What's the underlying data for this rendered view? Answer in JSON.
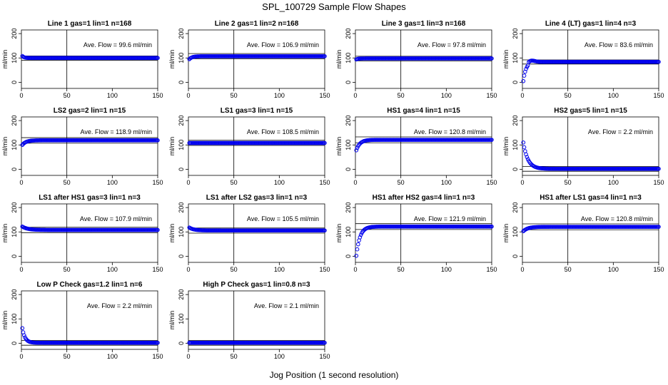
{
  "title": "SPL_100729  Sample Flow Shapes",
  "xlabel": "Jog Position (1 second resolution)",
  "chart_data": [
    {
      "type": "scatter",
      "title": "Line 1 gas=1 lin=1 n=168",
      "ylabel": "ml/min",
      "annotation": "Ave. Flow =  99.6  ml/min",
      "xlim": [
        0,
        150
      ],
      "ylim": [
        -25,
        215
      ],
      "yticks": [
        0,
        100,
        200
      ],
      "xticks": [
        0,
        50,
        100,
        150
      ],
      "vline": 50,
      "hlines": [
        90,
        108
      ],
      "shape": {
        "start": 108,
        "final": 100,
        "tau": 2
      }
    },
    {
      "type": "scatter",
      "title": "Line 2 gas=1 lin=2 n=168",
      "ylabel": "ml/min",
      "annotation": "Ave. Flow =  106.9  ml/min",
      "xlim": [
        0,
        150
      ],
      "ylim": [
        -25,
        215
      ],
      "yticks": [
        0,
        100,
        200
      ],
      "xticks": [
        0,
        50,
        100,
        150
      ],
      "vline": 50,
      "hlines": [
        97,
        118
      ],
      "shape": {
        "start": 95,
        "final": 107,
        "tau": 3
      }
    },
    {
      "type": "scatter",
      "title": "Line 3 gas=1 lin=3 n=168",
      "ylabel": "ml/min",
      "annotation": "Ave. Flow =  97.8  ml/min",
      "xlim": [
        0,
        150
      ],
      "ylim": [
        -25,
        215
      ],
      "yticks": [
        0,
        100,
        200
      ],
      "xticks": [
        0,
        50,
        100,
        150
      ],
      "vline": 50,
      "hlines": [
        88,
        107
      ],
      "shape": {
        "start": 94,
        "final": 98,
        "tau": 2
      }
    },
    {
      "type": "scatter",
      "title": "Line 4 (LT) gas=1 lin=4 n=3",
      "ylabel": "ml/min",
      "annotation": "Ave. Flow =  83.6  ml/min",
      "xlim": [
        0,
        150
      ],
      "ylim": [
        -25,
        215
      ],
      "yticks": [
        0,
        100,
        200
      ],
      "xticks": [
        0,
        50,
        100,
        150
      ],
      "vline": 50,
      "hlines": [
        75,
        92
      ],
      "shape": {
        "start": 5,
        "final": 84,
        "tau": 3,
        "overshoot": true
      }
    },
    {
      "type": "scatter",
      "title": "LS2 gas=2 lin=1 n=15",
      "ylabel": "ml/min",
      "annotation": "Ave. Flow =  118.9  ml/min",
      "xlim": [
        0,
        150
      ],
      "ylim": [
        -25,
        215
      ],
      "yticks": [
        0,
        100,
        200
      ],
      "xticks": [
        0,
        50,
        100,
        150
      ],
      "vline": 50,
      "hlines": [
        107,
        130
      ],
      "shape": {
        "start": 100,
        "final": 119,
        "tau": 4
      }
    },
    {
      "type": "scatter",
      "title": "LS1 gas=3 lin=1 n=15",
      "ylabel": "ml/min",
      "annotation": "Ave. Flow =  108.5  ml/min",
      "xlim": [
        0,
        150
      ],
      "ylim": [
        -25,
        215
      ],
      "yticks": [
        0,
        100,
        200
      ],
      "xticks": [
        0,
        50,
        100,
        150
      ],
      "vline": 50,
      "hlines": [
        98,
        119
      ],
      "shape": {
        "start": 108,
        "final": 108,
        "tau": 2
      }
    },
    {
      "type": "scatter",
      "title": "HS1 gas=4 lin=1 n=15",
      "ylabel": "ml/min",
      "annotation": "Ave. Flow =  120.8  ml/min",
      "xlim": [
        0,
        150
      ],
      "ylim": [
        -25,
        215
      ],
      "yticks": [
        0,
        100,
        200
      ],
      "xticks": [
        0,
        50,
        100,
        150
      ],
      "vline": 50,
      "hlines": [
        109,
        133
      ],
      "shape": {
        "start": 78,
        "final": 121,
        "tau": 4
      }
    },
    {
      "type": "scatter",
      "title": "HS2 gas=5 lin=1 n=15",
      "ylabel": "ml/min",
      "annotation": "Ave. Flow =  2.2  ml/min",
      "xlim": [
        0,
        150
      ],
      "ylim": [
        -25,
        215
      ],
      "yticks": [
        0,
        100,
        200
      ],
      "xticks": [
        0,
        50,
        100,
        150
      ],
      "vline": 50,
      "hlines": [
        -8,
        12
      ],
      "shape": {
        "start": 110,
        "final": 2,
        "tau": 5
      }
    },
    {
      "type": "scatter",
      "title": "LS1 after HS1 gas=3 lin=1 n=3",
      "ylabel": "ml/min",
      "annotation": "Ave. Flow =  107.9  ml/min",
      "xlim": [
        0,
        150
      ],
      "ylim": [
        -25,
        215
      ],
      "yticks": [
        0,
        100,
        200
      ],
      "xticks": [
        0,
        50,
        100,
        150
      ],
      "vline": 50,
      "hlines": [
        97,
        119
      ],
      "shape": {
        "start": 122,
        "final": 108,
        "tau": 6
      }
    },
    {
      "type": "scatter",
      "title": "LS1 after LS2 gas=3 lin=1 n=3",
      "ylabel": "ml/min",
      "annotation": "Ave. Flow =  105.5  ml/min",
      "xlim": [
        0,
        150
      ],
      "ylim": [
        -25,
        215
      ],
      "yticks": [
        0,
        100,
        200
      ],
      "xticks": [
        0,
        50,
        100,
        150
      ],
      "vline": 50,
      "hlines": [
        95,
        116
      ],
      "shape": {
        "start": 118,
        "final": 106,
        "tau": 5
      }
    },
    {
      "type": "scatter",
      "title": "HS1 after HS2 gas=4 lin=1 n=3",
      "ylabel": "ml/min",
      "annotation": "Ave. Flow =  121.9  ml/min",
      "xlim": [
        0,
        150
      ],
      "ylim": [
        -25,
        215
      ],
      "yticks": [
        0,
        100,
        200
      ],
      "xticks": [
        0,
        50,
        100,
        150
      ],
      "vline": 50,
      "hlines": [
        110,
        134
      ],
      "shape": {
        "start": 2,
        "final": 122,
        "tau": 4
      }
    },
    {
      "type": "scatter",
      "title": "HS1 after LS1 gas=4 lin=1 n=3",
      "ylabel": "ml/min",
      "annotation": "Ave. Flow =  120.8  ml/min",
      "xlim": [
        0,
        150
      ],
      "ylim": [
        -25,
        215
      ],
      "yticks": [
        0,
        100,
        200
      ],
      "xticks": [
        0,
        50,
        100,
        150
      ],
      "vline": 50,
      "hlines": [
        109,
        133
      ],
      "shape": {
        "start": 103,
        "final": 121,
        "tau": 5
      }
    },
    {
      "type": "scatter",
      "title": "Low P Check gas=1.2 lin=1 n=6",
      "ylabel": "ml/min",
      "annotation": "Ave. Flow =  2.2  ml/min",
      "xlim": [
        0,
        150
      ],
      "ylim": [
        -25,
        215
      ],
      "yticks": [
        0,
        100,
        200
      ],
      "xticks": [
        0,
        50,
        100,
        150
      ],
      "vline": 50,
      "hlines": [
        -8,
        12
      ],
      "shape": {
        "start": 62,
        "final": 2,
        "tau": 3
      }
    },
    {
      "type": "scatter",
      "title": "High P Check gas=1 lin=0.8 n=3",
      "ylabel": "ml/min",
      "annotation": "Ave. Flow =  2.1  ml/min",
      "xlim": [
        0,
        150
      ],
      "ylim": [
        -25,
        215
      ],
      "yticks": [
        0,
        100,
        200
      ],
      "xticks": [
        0,
        50,
        100,
        150
      ],
      "vline": 50,
      "hlines": [
        -8,
        12
      ],
      "shape": {
        "start": 2,
        "final": 2,
        "tau": 1
      }
    }
  ],
  "colors": {
    "points": "#0000ee",
    "axes": "#000000"
  }
}
